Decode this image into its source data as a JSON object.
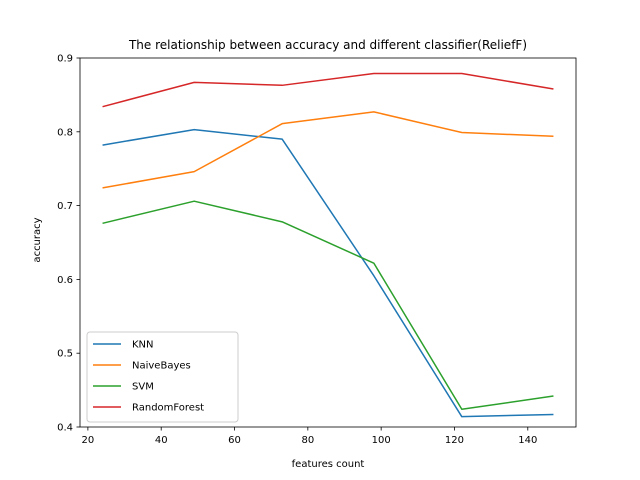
{
  "chart_data": {
    "type": "line",
    "title": "The relationship between accuracy and different classifier(ReliefF)",
    "xlabel": "features count",
    "ylabel": "accuracy",
    "x": [
      24,
      49,
      73,
      98,
      122,
      147
    ],
    "xlim": [
      17.85,
      153.15
    ],
    "ylim": [
      0.4,
      0.9
    ],
    "xticks": [
      20,
      40,
      60,
      80,
      100,
      120,
      140
    ],
    "yticks": [
      0.4,
      0.5,
      0.6,
      0.7,
      0.8,
      0.9
    ],
    "grid": false,
    "legend_position": "lower-left",
    "series": [
      {
        "name": "KNN",
        "color": "#1f77b4",
        "values": [
          0.782,
          0.803,
          0.79,
          0.605,
          0.414,
          0.417
        ]
      },
      {
        "name": "NaiveBayes",
        "color": "#ff7f0e",
        "values": [
          0.724,
          0.746,
          0.811,
          0.827,
          0.799,
          0.794
        ]
      },
      {
        "name": "SVM",
        "color": "#2ca02c",
        "values": [
          0.676,
          0.706,
          0.678,
          0.622,
          0.424,
          0.442
        ]
      },
      {
        "name": "RandomForest",
        "color": "#d62728",
        "values": [
          0.834,
          0.867,
          0.863,
          0.879,
          0.879,
          0.858
        ]
      }
    ]
  }
}
